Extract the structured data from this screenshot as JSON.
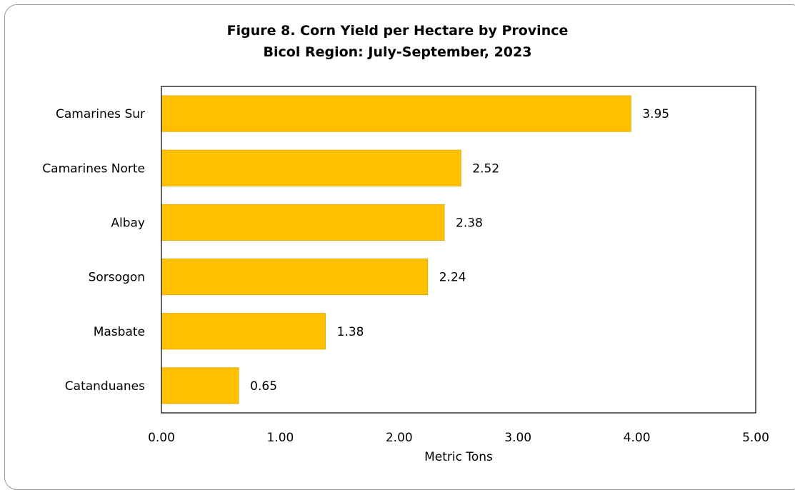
{
  "chart_data": {
    "type": "bar",
    "orientation": "horizontal",
    "title": "Figure 8. Corn Yield per Hectare by Province",
    "subtitle": "Bicol Region: July-September, 2023",
    "categories": [
      "Camarines Sur",
      "Camarines Norte",
      "Albay",
      "Sorsogon",
      "Masbate",
      "Catanduanes"
    ],
    "values": [
      3.95,
      2.52,
      2.38,
      2.24,
      1.38,
      0.65
    ],
    "data_labels": [
      "3.95",
      "2.52",
      "2.38",
      "2.24",
      "1.38",
      "0.65"
    ],
    "xlabel": "Metric Tons",
    "xlim": [
      0,
      5
    ],
    "x_ticks": [
      "0.00",
      "1.00",
      "2.00",
      "3.00",
      "4.00",
      "5.00"
    ],
    "grid": false,
    "bar_color": "#FFC000"
  }
}
